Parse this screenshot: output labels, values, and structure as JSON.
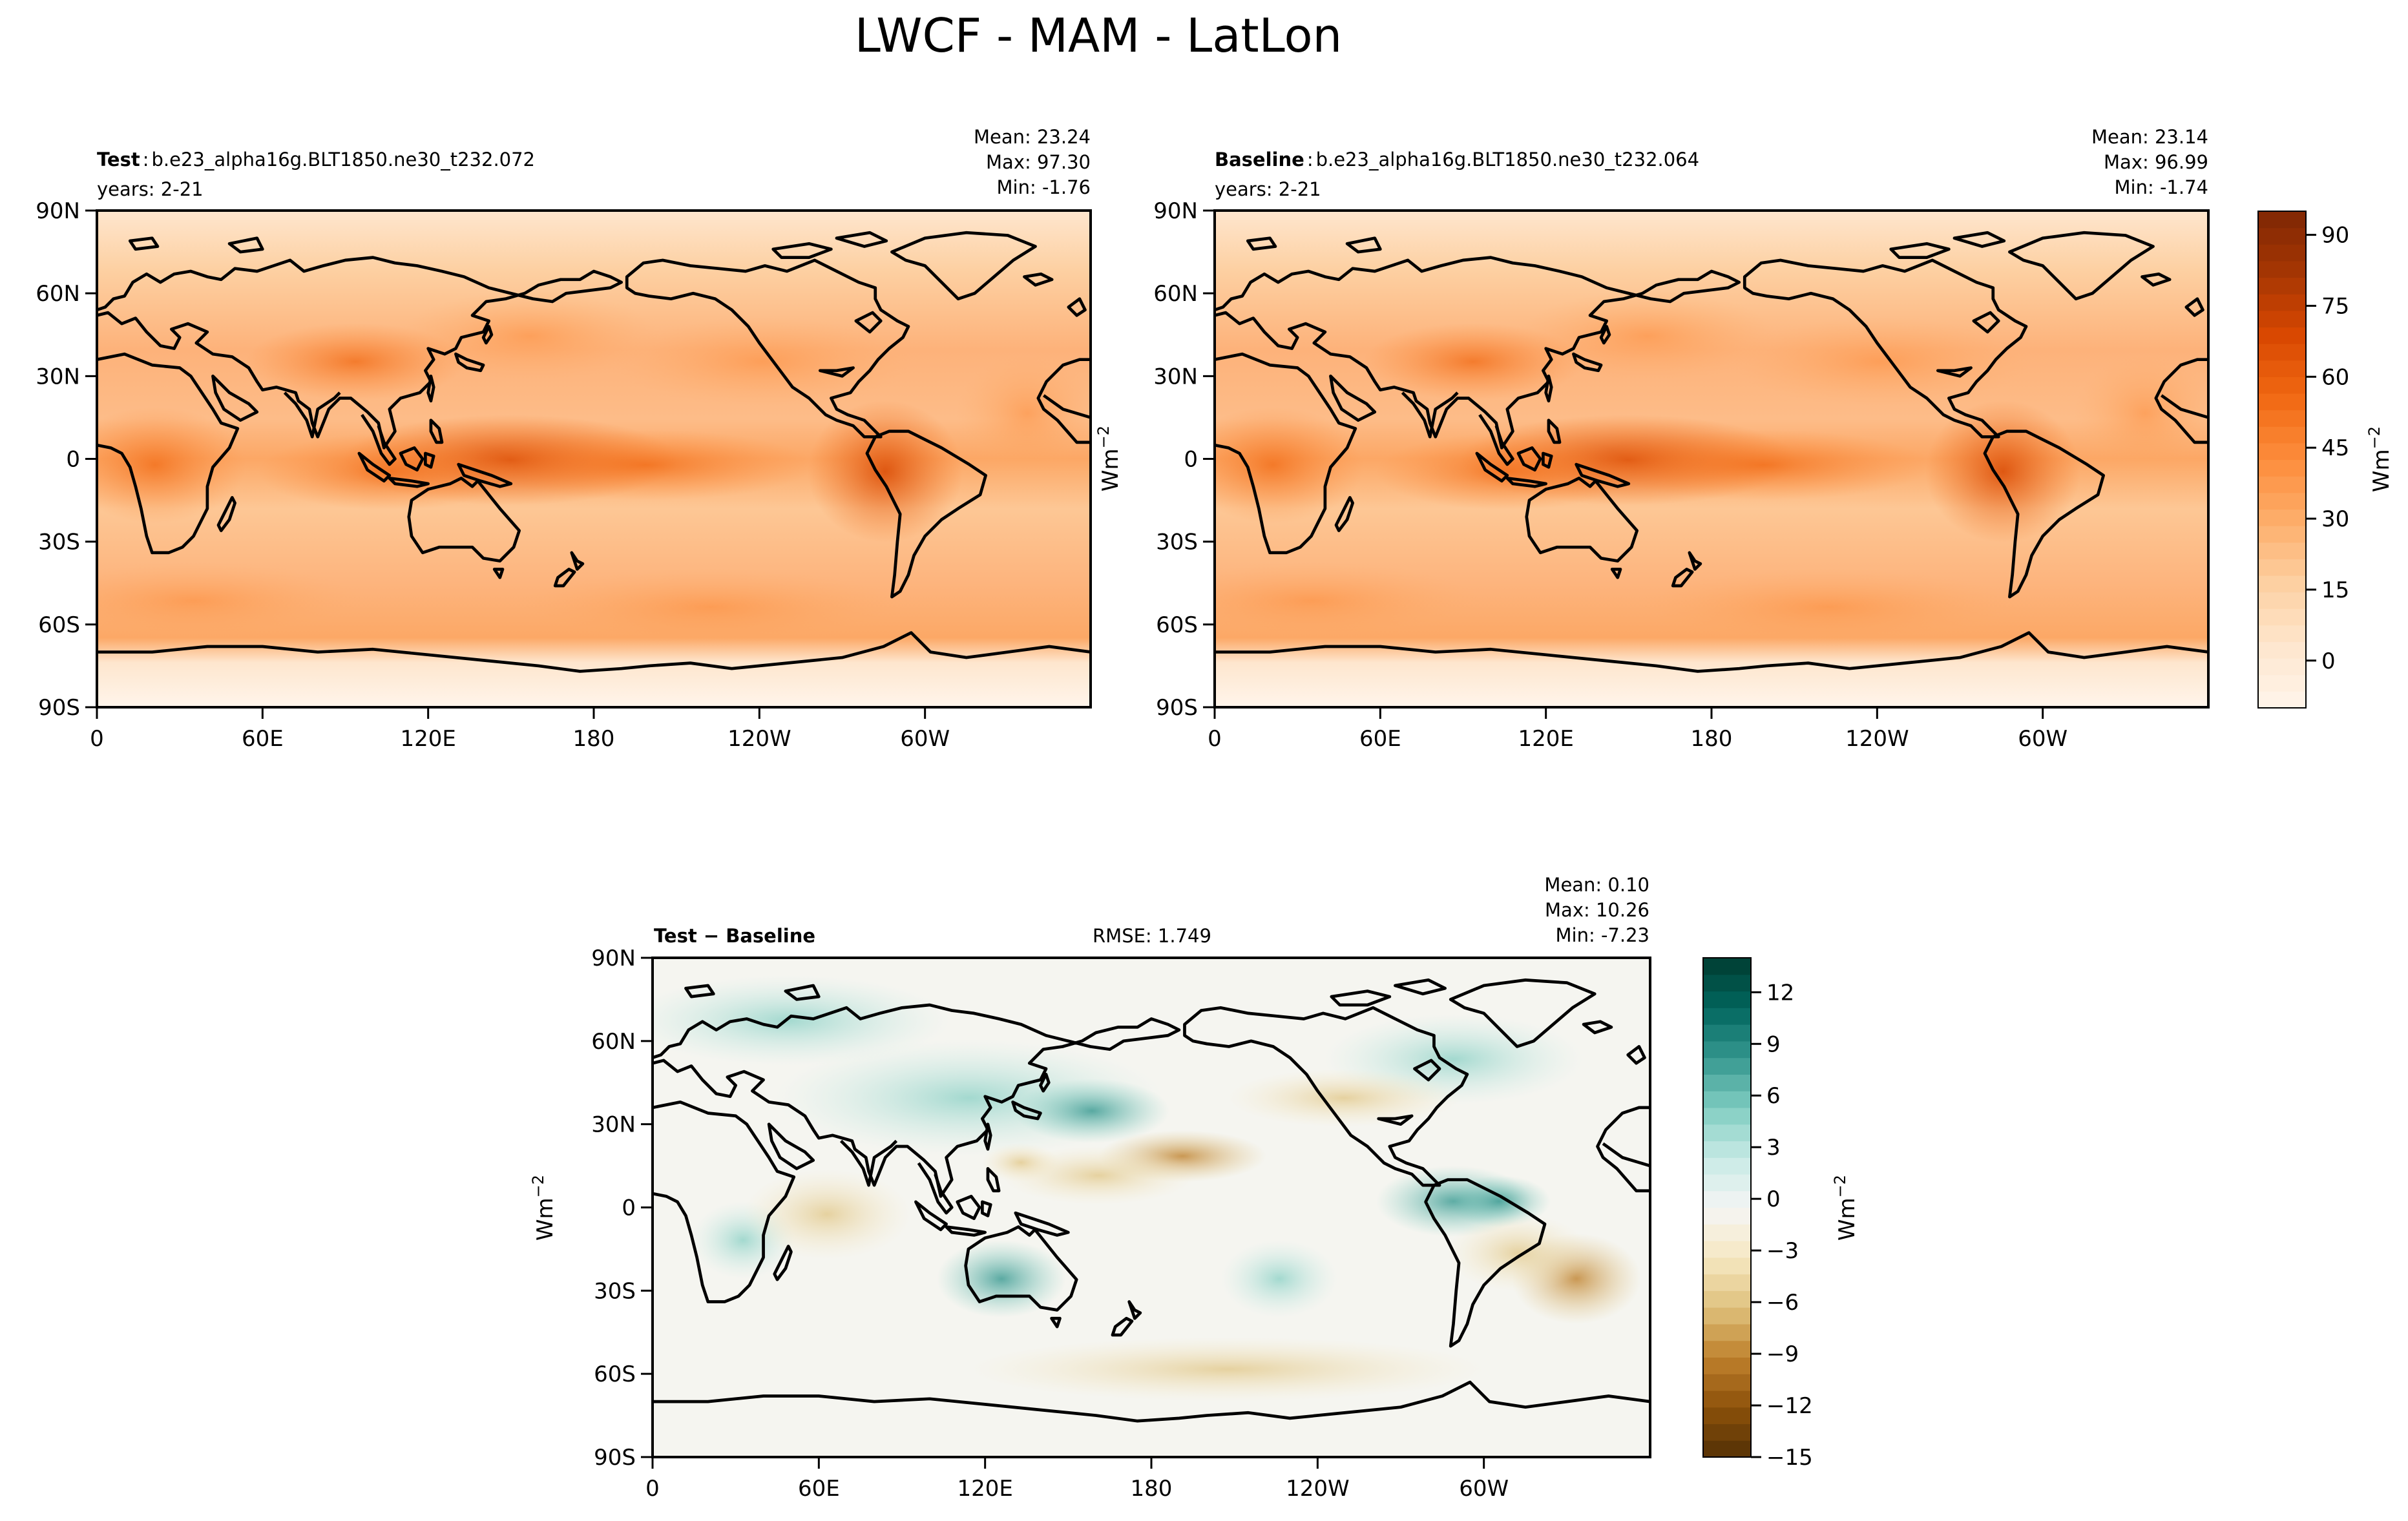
{
  "figure": {
    "title": "LWCF - MAM - LatLon"
  },
  "chart_data": [
    {
      "type": "heatmap",
      "panel": "test",
      "label_bold": "Test",
      "label_sep": ":",
      "case_name": "b.e23_alpha16g.BLT1850.ne30_t232.072",
      "years": "years: 2-21",
      "stats": [
        "Mean: 23.24",
        "Max: 97.30",
        "Min: -1.76"
      ],
      "projection": "Plate Carree, centered at 180",
      "xticks": [
        "0",
        "60E",
        "120E",
        "180",
        "120W",
        "60W"
      ],
      "yticks": [
        "90N",
        "60N",
        "30N",
        "0",
        "30S",
        "60S",
        "90S"
      ],
      "xlim": [
        0,
        360
      ],
      "ylim": [
        -90,
        90
      ],
      "ylabel": "Wm$^{-2}$",
      "colormap": "Oranges",
      "value_range": [
        -1.76,
        97.3
      ]
    },
    {
      "type": "heatmap",
      "panel": "baseline",
      "label_bold": "Baseline",
      "label_sep": ":",
      "case_name": "b.e23_alpha16g.BLT1850.ne30_t232.064",
      "years": "years: 2-21",
      "stats": [
        "Mean: 23.14",
        "Max: 96.99",
        "Min: -1.74"
      ],
      "xticks": [
        "0",
        "60E",
        "120E",
        "180",
        "120W",
        "60W"
      ],
      "yticks": [
        "90N",
        "60N",
        "30N",
        "0",
        "30S",
        "60S",
        "90S"
      ],
      "xlim": [
        0,
        360
      ],
      "ylim": [
        -90,
        90
      ],
      "colormap": "Oranges",
      "colorbar": {
        "ticks": [
          "90",
          "75",
          "60",
          "45",
          "30",
          "15",
          "0"
        ],
        "tick_values": [
          90,
          75,
          60,
          45,
          30,
          15,
          0
        ],
        "range": [
          -10,
          95
        ],
        "label": "Wm",
        "label_sup": "−2",
        "colors": [
          "#fff5eb",
          "#fee6ce",
          "#fdd0a2",
          "#fdae6b",
          "#fd8d3c",
          "#f16913",
          "#d94801",
          "#a63603",
          "#7f2704"
        ]
      },
      "value_range": [
        -1.74,
        96.99
      ]
    },
    {
      "type": "heatmap",
      "panel": "diff",
      "label_bold": "Test − Baseline",
      "rmse": "RMSE: 1.749",
      "stats": [
        "Mean:  0.10",
        "Max: 10.26",
        "Min: -7.23"
      ],
      "xticks": [
        "0",
        "60E",
        "120E",
        "180",
        "120W",
        "60W"
      ],
      "yticks": [
        "90N",
        "60N",
        "30N",
        "0",
        "30S",
        "60S",
        "90S"
      ],
      "xlim": [
        0,
        360
      ],
      "ylim": [
        -90,
        90
      ],
      "ylabel": "Wm",
      "ylabel_sup": "−2",
      "colormap": "BrBG",
      "colorbar": {
        "ticks": [
          "12",
          "9",
          "6",
          "3",
          "0",
          "−3",
          "−6",
          "−9",
          "−12",
          "−15"
        ],
        "tick_values": [
          12,
          9,
          6,
          3,
          0,
          -3,
          -6,
          -9,
          -12,
          -15
        ],
        "range": [
          -15,
          14
        ],
        "label": "Wm",
        "label_sup": "−2",
        "colors": [
          "#543005",
          "#8c510a",
          "#bf812d",
          "#dfc27d",
          "#f6e8c3",
          "#f5f5f5",
          "#c7eae5",
          "#80cdc1",
          "#35978f",
          "#01665e",
          "#003c30"
        ]
      },
      "value_range": [
        -7.23,
        10.26
      ]
    }
  ]
}
